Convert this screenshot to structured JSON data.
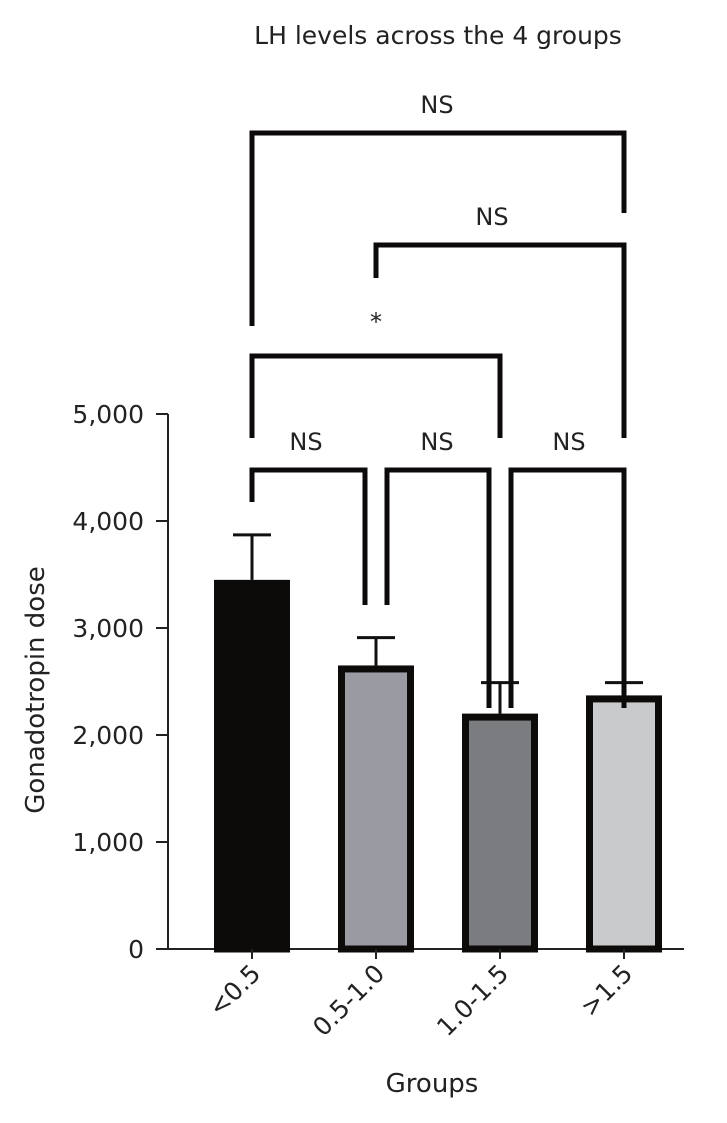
{
  "chart_data": {
    "type": "bar",
    "title": "LH levels across the 4 groups",
    "xlabel": "Groups",
    "ylabel": "Gonadotropin dose",
    "categories": [
      "<0.5",
      "0.5-1.0",
      "1.0-1.5",
      ">1.5"
    ],
    "values": [
      3450,
      2650,
      2200,
      2370
    ],
    "error_upper": [
      3870,
      2910,
      2490,
      2490
    ],
    "ylim": [
      0,
      5000
    ],
    "yticks": [
      0,
      1000,
      2000,
      3000,
      4000,
      5000
    ],
    "ytick_labels": [
      "0",
      "1,000",
      "2,000",
      "3,000",
      "4,000",
      "5,000"
    ],
    "bar_colors": [
      "#0d0a0a",
      "#9a9aa2",
      "#7b7c80",
      "#c9cacc"
    ],
    "grid": false,
    "comparisons": [
      {
        "from": 0,
        "to": 1,
        "label": "NS"
      },
      {
        "from": 1,
        "to": 2,
        "label": "NS"
      },
      {
        "from": 2,
        "to": 3,
        "label": "NS"
      },
      {
        "from": 0,
        "to": 2,
        "label": "*"
      },
      {
        "from": 1,
        "to": 3,
        "label": "NS"
      },
      {
        "from": 0,
        "to": 3,
        "label": "NS"
      }
    ]
  }
}
